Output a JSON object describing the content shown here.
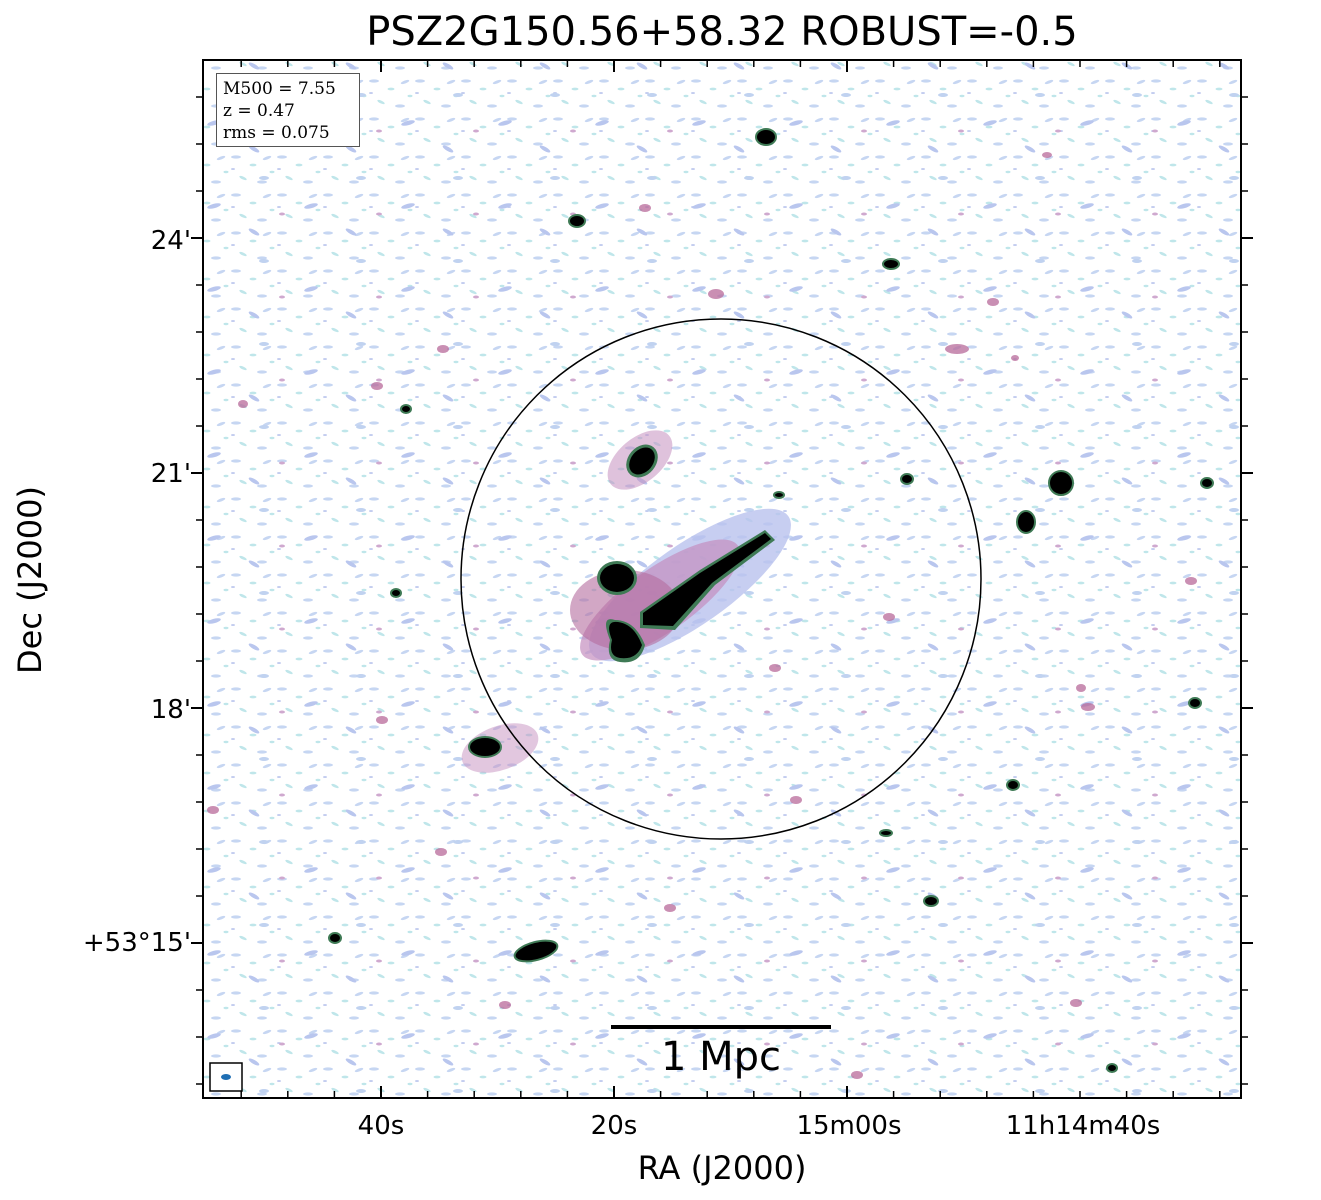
{
  "title": "PSZ2G150.56+58.32 ROBUST=-0.5",
  "axes": {
    "xlabel": "RA (J2000)",
    "ylabel": "Dec (J2000)",
    "x_ticks": [
      "40s",
      "20s",
      "15m00s",
      "11h14m40s"
    ],
    "y_ticks": [
      "24'",
      "21'",
      "18'",
      "+53°15'"
    ]
  },
  "info_box": {
    "m500": "M500 = 7.55",
    "z": "z = 0.47",
    "rms": "rms = 0.075"
  },
  "scale_bar": {
    "label": "1 Mpc"
  },
  "colors": {
    "noise_light": "#c6d6f2",
    "noise_cyan": "#bfe6ea",
    "noise_pink": "#b86a9a",
    "source_core": "#000000",
    "source_ring": "#3f7a55",
    "beam": "#1f6fb4"
  }
}
